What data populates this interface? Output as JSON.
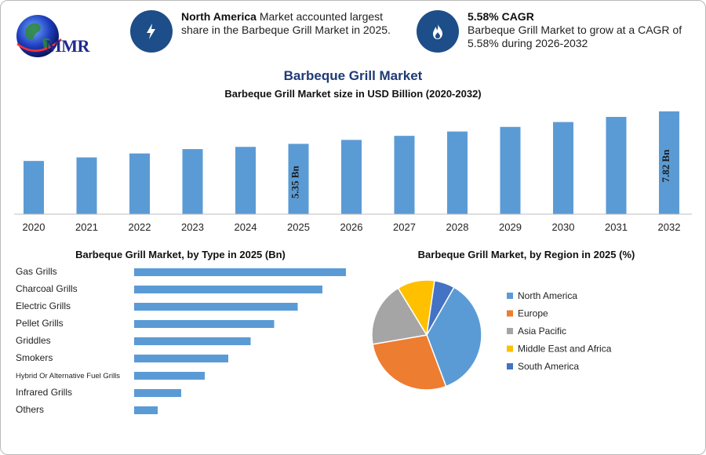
{
  "logo": {
    "text": "MMR"
  },
  "highlights": [
    {
      "bold": "North America",
      "text": " Market accounted largest share in the Barbeque Grill Market in 2025.",
      "icon": "lightning-icon"
    },
    {
      "bold": "5.58% CAGR",
      "text": "Barbeque Grill Market to grow at a CAGR of 5.58% during 2026-2032",
      "icon": "flame-icon"
    }
  ],
  "header": {
    "title": "Barbeque Grill Market",
    "subtitle": "Barbeque Grill Market size in USD Billion (2020-2032)"
  },
  "panels": {
    "type_title": "Barbeque Grill Market, by Type in 2025 (Bn)",
    "region_title": "Barbeque Grill Market, by Region in 2025 (%)"
  },
  "colors": {
    "bar": "#5b9bd5",
    "brand": "#1d4e89",
    "title": "#1f3a75"
  },
  "chart_data": [
    {
      "type": "bar",
      "title": "Barbeque Grill Market size in USD Billion (2020-2032)",
      "categories": [
        "2020",
        "2021",
        "2022",
        "2023",
        "2024",
        "2025",
        "2026",
        "2027",
        "2028",
        "2029",
        "2030",
        "2031",
        "2032"
      ],
      "values": [
        4.05,
        4.32,
        4.62,
        4.95,
        5.12,
        5.35,
        5.65,
        5.96,
        6.29,
        6.64,
        7.01,
        7.4,
        7.82
      ],
      "data_labels": {
        "5": "5.35 Bn",
        "12": "7.82 Bn"
      },
      "ylim": [
        0,
        8
      ],
      "grid": false
    },
    {
      "type": "bar",
      "orientation": "horizontal",
      "title": "Barbeque Grill Market, by Type in 2025 (Bn)",
      "categories": [
        "Gas Grills",
        "Charcoal Grills",
        "Electric Grills",
        "Pellet Grills",
        "Griddles",
        "Smokers",
        "Hybrid Or Alternative Fuel Grills",
        "Infrared Grills",
        "Others"
      ],
      "values": [
        1.8,
        1.6,
        1.39,
        1.19,
        0.99,
        0.8,
        0.6,
        0.4,
        0.2
      ],
      "xlim": [
        0,
        1.8
      ]
    },
    {
      "type": "pie",
      "title": "Barbeque Grill Market, by Region in 2025 (%)",
      "labels": [
        "North America",
        "Europe",
        "Asia Pacific",
        "Middle East and Africa",
        "South America"
      ],
      "values": [
        36,
        28,
        19,
        11,
        6
      ],
      "colors": [
        "#5b9bd5",
        "#ed7d31",
        "#a5a5a5",
        "#ffc000",
        "#4472c4"
      ],
      "legend": "right"
    }
  ]
}
